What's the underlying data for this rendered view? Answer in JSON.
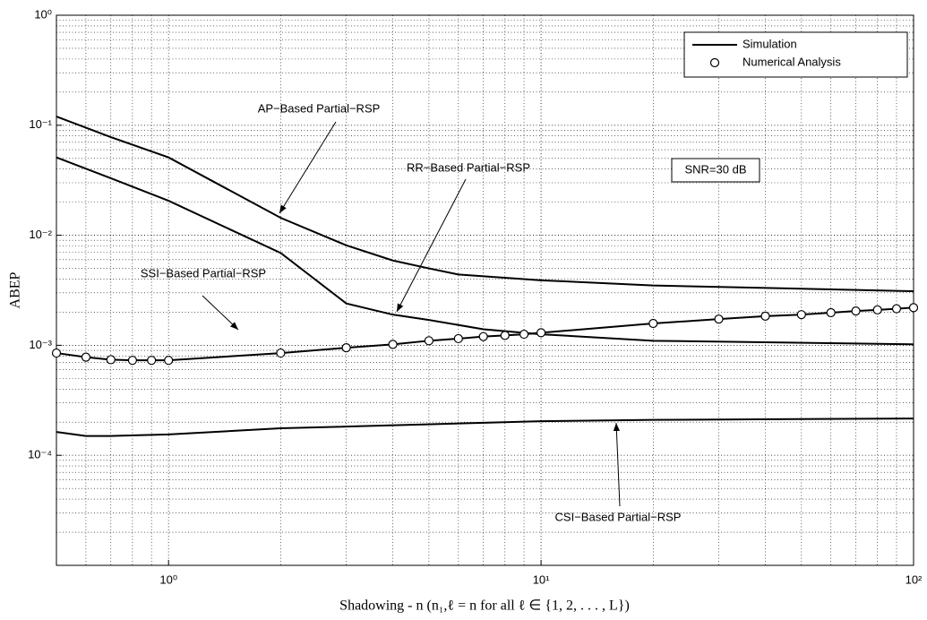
{
  "chart_data": {
    "type": "line",
    "xlabel": "Shadowing - n (n₁,ℓ = n for all ℓ ∈ {1, 2, . . . , L})",
    "ylabel": "ABEP",
    "xscale": "log",
    "yscale": "log",
    "xlim": [
      0.5,
      100
    ],
    "ylim": [
      1e-05,
      1
    ],
    "xticks": [
      {
        "value": 1,
        "label": "10⁰"
      },
      {
        "value": 10,
        "label": "10¹"
      },
      {
        "value": 100,
        "label": "10²"
      }
    ],
    "yticks": [
      {
        "value": 1,
        "label": "10⁰"
      },
      {
        "value": 0.1,
        "label": "10⁻¹"
      },
      {
        "value": 0.01,
        "label": "10⁻²"
      },
      {
        "value": 0.001,
        "label": "10⁻³"
      },
      {
        "value": 0.0001,
        "label": "10⁻⁴"
      }
    ],
    "grid": true,
    "minor_grid": true,
    "legend_position": "upper right",
    "legend": [
      {
        "label": "Simulation",
        "marker": "line"
      },
      {
        "label": "Numerical Analysis",
        "marker": "circle"
      }
    ],
    "annotations": [
      "SNR=30 dB"
    ],
    "series": [
      {
        "name": "AP−Based Partial−RSP",
        "color": "#000000",
        "markers": false,
        "x": [
          0.5,
          0.7,
          1,
          2,
          3,
          4,
          5,
          6,
          10,
          20,
          100
        ],
        "values": [
          0.12,
          0.078,
          0.051,
          0.0144,
          0.0081,
          0.0059,
          0.005,
          0.0044,
          0.0039,
          0.0035,
          0.0031
        ]
      },
      {
        "name": "RR−Based Partial−RSP",
        "color": "#000000",
        "markers": false,
        "x": [
          0.5,
          0.7,
          1,
          2,
          3,
          4,
          5,
          7,
          10,
          20,
          100
        ],
        "values": [
          0.051,
          0.033,
          0.0206,
          0.0069,
          0.0024,
          0.0019,
          0.0017,
          0.0014,
          0.00126,
          0.0011,
          0.00102
        ]
      },
      {
        "name": "SSI−Based Partial−RSP",
        "color": "#000000",
        "markers": true,
        "x": [
          0.5,
          0.6,
          0.7,
          0.8,
          0.9,
          1,
          2,
          3,
          4,
          5,
          6,
          7,
          8,
          9,
          10,
          20,
          30,
          40,
          50,
          60,
          70,
          80,
          90,
          100
        ],
        "values": [
          0.00085,
          0.00078,
          0.00074,
          0.00073,
          0.00073,
          0.00073,
          0.00085,
          0.00095,
          0.00102,
          0.0011,
          0.00115,
          0.0012,
          0.00123,
          0.00126,
          0.0013,
          0.00158,
          0.00173,
          0.00184,
          0.0019,
          0.00198,
          0.00205,
          0.0021,
          0.00215,
          0.0022
        ]
      },
      {
        "name": "CSI−Based Partial−RSP",
        "color": "#000000",
        "markers": false,
        "x": [
          0.5,
          0.6,
          0.7,
          1,
          2,
          10,
          20,
          100
        ],
        "values": [
          0.000163,
          0.00015,
          0.00015,
          0.000155,
          0.000176,
          0.000204,
          0.00021,
          0.000216
        ]
      }
    ]
  }
}
